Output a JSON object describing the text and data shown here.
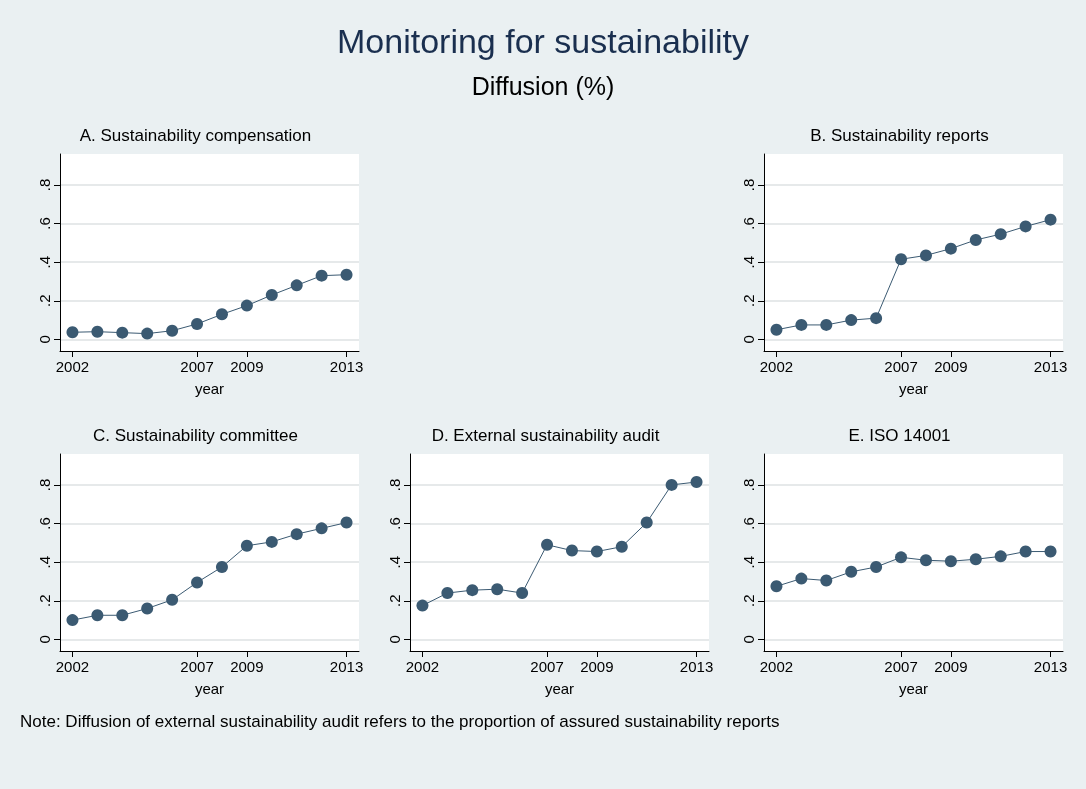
{
  "chart_data": [
    {
      "type": "other",
      "title": "Monitoring for sustainability",
      "subtitle": "Diffusion (%)",
      "annotations": [
        "Note: Diffusion of external sustainability audit refers to the proportion of assured sustainability reports"
      ]
    },
    {
      "type": "line",
      "title": "A. Sustainability compensation",
      "xlabel": "year",
      "x": [
        2002,
        2003,
        2004,
        2005,
        2006,
        2007,
        2008,
        2009,
        2010,
        2011,
        2012,
        2013
      ],
      "series": [
        {
          "color": "#3b5a72",
          "values": [
            0.037,
            0.04,
            0.035,
            0.03,
            0.045,
            0.08,
            0.13,
            0.175,
            0.23,
            0.28,
            0.33,
            0.335
          ]
        }
      ],
      "xlim": [
        2001.5,
        2013.5
      ],
      "xticks": [
        2002,
        2007,
        2009,
        2013
      ],
      "ylim": [
        -0.06,
        0.96
      ],
      "yticks": [
        {
          "value": 0,
          "label": "0"
        },
        {
          "value": 0.2,
          "label": ".2"
        },
        {
          "value": 0.4,
          "label": ".4"
        },
        {
          "value": 0.6,
          "label": ".6"
        },
        {
          "value": 0.8,
          "label": ".8"
        }
      ],
      "grid": "y",
      "marker": "circle",
      "line_style": "solid"
    },
    {
      "type": "line",
      "title": "B. Sustainability reports",
      "xlabel": "year",
      "x": [
        2002,
        2003,
        2004,
        2005,
        2006,
        2007,
        2008,
        2009,
        2010,
        2011,
        2012,
        2013
      ],
      "series": [
        {
          "color": "#3b5a72",
          "values": [
            0.05,
            0.075,
            0.075,
            0.1,
            0.11,
            0.415,
            0.435,
            0.47,
            0.515,
            0.545,
            0.585,
            0.62
          ]
        }
      ],
      "xlim": [
        2001.5,
        2013.5
      ],
      "xticks": [
        2002,
        2007,
        2009,
        2013
      ],
      "ylim": [
        -0.06,
        0.96
      ],
      "yticks": [
        {
          "value": 0,
          "label": "0"
        },
        {
          "value": 0.2,
          "label": ".2"
        },
        {
          "value": 0.4,
          "label": ".4"
        },
        {
          "value": 0.6,
          "label": ".6"
        },
        {
          "value": 0.8,
          "label": ".8"
        }
      ],
      "grid": "y",
      "marker": "circle",
      "line_style": "solid"
    },
    {
      "type": "line",
      "title": "C. Sustainability committee",
      "xlabel": "year",
      "x": [
        2002,
        2003,
        2004,
        2005,
        2006,
        2007,
        2008,
        2009,
        2010,
        2011,
        2012,
        2013
      ],
      "series": [
        {
          "color": "#3b5a72",
          "values": [
            0.1,
            0.125,
            0.125,
            0.16,
            0.205,
            0.295,
            0.375,
            0.485,
            0.505,
            0.545,
            0.575,
            0.605
          ]
        }
      ],
      "xlim": [
        2001.5,
        2013.5
      ],
      "xticks": [
        2002,
        2007,
        2009,
        2013
      ],
      "ylim": [
        -0.06,
        0.96
      ],
      "yticks": [
        {
          "value": 0,
          "label": "0"
        },
        {
          "value": 0.2,
          "label": ".2"
        },
        {
          "value": 0.4,
          "label": ".4"
        },
        {
          "value": 0.6,
          "label": ".6"
        },
        {
          "value": 0.8,
          "label": ".8"
        }
      ],
      "grid": "y",
      "marker": "circle",
      "line_style": "solid"
    },
    {
      "type": "line",
      "title": "D. External sustainability audit",
      "xlabel": "year",
      "x": [
        2002,
        2003,
        2004,
        2005,
        2006,
        2007,
        2008,
        2009,
        2010,
        2011,
        2012,
        2013
      ],
      "series": [
        {
          "color": "#3b5a72",
          "values": [
            0.175,
            0.24,
            0.255,
            0.26,
            0.24,
            0.49,
            0.46,
            0.455,
            0.48,
            0.605,
            0.8,
            0.815
          ]
        }
      ],
      "xlim": [
        2001.5,
        2013.5
      ],
      "xticks": [
        2002,
        2007,
        2009,
        2013
      ],
      "ylim": [
        -0.06,
        0.96
      ],
      "yticks": [
        {
          "value": 0,
          "label": "0"
        },
        {
          "value": 0.2,
          "label": ".2"
        },
        {
          "value": 0.4,
          "label": ".4"
        },
        {
          "value": 0.6,
          "label": ".6"
        },
        {
          "value": 0.8,
          "label": ".8"
        }
      ],
      "grid": "y",
      "marker": "circle",
      "line_style": "solid"
    },
    {
      "type": "line",
      "title": "E. ISO 14001",
      "xlabel": "year",
      "x": [
        2002,
        2003,
        2004,
        2005,
        2006,
        2007,
        2008,
        2009,
        2010,
        2011,
        2012,
        2013
      ],
      "series": [
        {
          "color": "#3b5a72",
          "values": [
            0.275,
            0.315,
            0.305,
            0.35,
            0.375,
            0.425,
            0.41,
            0.405,
            0.415,
            0.43,
            0.455,
            0.455
          ]
        }
      ],
      "xlim": [
        2001.5,
        2013.5
      ],
      "xticks": [
        2002,
        2007,
        2009,
        2013
      ],
      "ylim": [
        -0.06,
        0.96
      ],
      "yticks": [
        {
          "value": 0,
          "label": "0"
        },
        {
          "value": 0.2,
          "label": ".2"
        },
        {
          "value": 0.4,
          "label": ".4"
        },
        {
          "value": 0.6,
          "label": ".6"
        },
        {
          "value": 0.8,
          "label": ".8"
        }
      ],
      "grid": "y",
      "marker": "circle",
      "line_style": "solid"
    }
  ]
}
